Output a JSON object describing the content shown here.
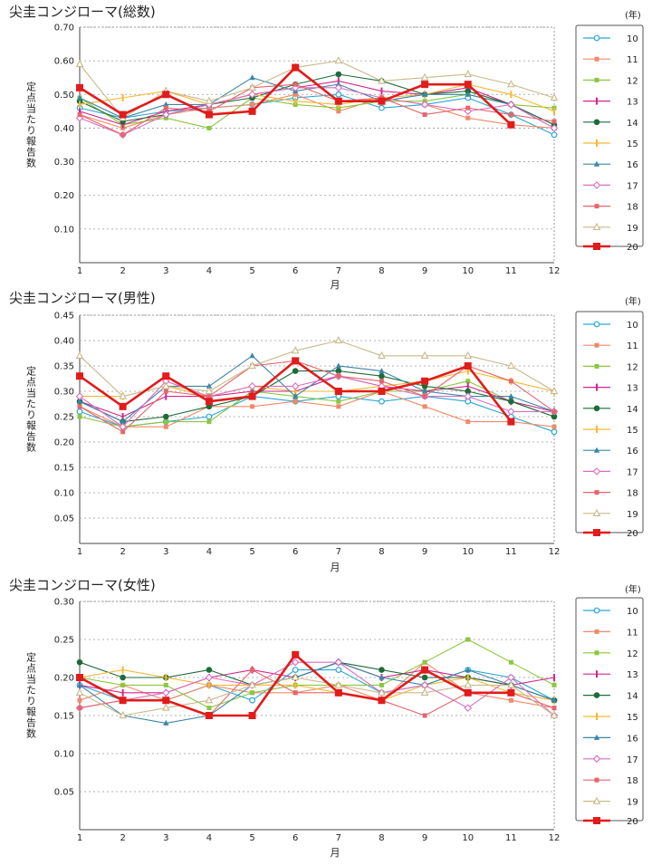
{
  "colors": {
    "10": "#2aa7d6",
    "11": "#f08a6a",
    "12": "#8cc63f",
    "13": "#d1268c",
    "14": "#1e6b3a",
    "15": "#f7b733",
    "16": "#3b86a6",
    "17": "#d86fc1",
    "18": "#e6656b",
    "19": "#c8b98a",
    "20": "#e21b1b",
    "grid": "#9a9a9a",
    "text": "#222222"
  },
  "chart_data": [
    {
      "type": "line",
      "title": "尖圭コンジローマ(総数)",
      "ylabel": "定点当たり報告数",
      "xlabel": "月",
      "year_unit": "(年)",
      "categories": [
        "1",
        "2",
        "3",
        "4",
        "5",
        "6",
        "7",
        "8",
        "9",
        "10",
        "11",
        "12"
      ],
      "ylim": [
        0,
        0.7
      ],
      "yticks": [
        "0.10",
        "0.20",
        "0.30",
        "0.40",
        "0.50",
        "0.60",
        "0.70"
      ],
      "legend_position": "right",
      "series": [
        {
          "name": "10",
          "marker": "circle-open",
          "values": [
            0.46,
            0.43,
            0.45,
            0.46,
            0.47,
            0.49,
            0.5,
            0.46,
            0.47,
            0.49,
            0.44,
            0.38
          ]
        },
        {
          "name": "11",
          "marker": "square-filled",
          "values": [
            0.44,
            0.4,
            0.44,
            0.46,
            0.47,
            0.5,
            0.45,
            0.49,
            0.47,
            0.43,
            0.41,
            0.4
          ]
        },
        {
          "name": "12",
          "marker": "square-filled",
          "values": [
            0.49,
            0.41,
            0.43,
            0.4,
            0.49,
            0.47,
            0.46,
            0.48,
            0.48,
            0.5,
            0.47,
            0.46
          ]
        },
        {
          "name": "13",
          "marker": "bar",
          "values": [
            0.45,
            0.41,
            0.45,
            0.47,
            0.5,
            0.52,
            0.54,
            0.51,
            0.5,
            0.52,
            0.47,
            0.41
          ]
        },
        {
          "name": "14",
          "marker": "circle-filled",
          "values": [
            0.48,
            0.42,
            0.44,
            0.47,
            0.49,
            0.53,
            0.56,
            0.54,
            0.5,
            0.51,
            0.47,
            0.41
          ]
        },
        {
          "name": "15",
          "marker": "bar",
          "values": [
            0.47,
            0.49,
            0.51,
            0.47,
            0.5,
            0.48,
            0.47,
            0.49,
            0.5,
            0.53,
            0.5,
            0.45
          ]
        },
        {
          "name": "16",
          "marker": "triangle-filled",
          "values": [
            0.49,
            0.43,
            0.47,
            0.47,
            0.55,
            0.51,
            0.53,
            0.48,
            0.5,
            0.5,
            0.47,
            0.4
          ]
        },
        {
          "name": "17",
          "marker": "diamond-open",
          "values": [
            0.43,
            0.38,
            0.44,
            0.47,
            0.5,
            0.52,
            0.52,
            0.49,
            0.47,
            0.45,
            0.47,
            0.4
          ]
        },
        {
          "name": "18",
          "marker": "square-filled",
          "values": [
            0.44,
            0.38,
            0.46,
            0.45,
            0.52,
            0.53,
            0.48,
            0.49,
            0.44,
            0.46,
            0.44,
            0.42
          ]
        },
        {
          "name": "19",
          "marker": "triangle-open",
          "values": [
            0.59,
            0.43,
            0.51,
            0.48,
            0.52,
            0.58,
            0.6,
            0.54,
            0.55,
            0.56,
            0.53,
            0.49
          ]
        },
        {
          "name": "20",
          "marker": "square-big",
          "values": [
            0.52,
            0.44,
            0.5,
            0.44,
            0.45,
            0.58,
            0.48,
            0.48,
            0.53,
            0.53,
            0.41,
            null
          ]
        }
      ]
    },
    {
      "type": "line",
      "title": "尖圭コンジローマ(男性)",
      "ylabel": "定点当たり報告数",
      "xlabel": "月",
      "year_unit": "(年)",
      "categories": [
        "1",
        "2",
        "3",
        "4",
        "5",
        "6",
        "7",
        "8",
        "9",
        "10",
        "11",
        "12"
      ],
      "ylim": [
        0,
        0.45
      ],
      "yticks": [
        "0.05",
        "0.10",
        "0.15",
        "0.20",
        "0.25",
        "0.30",
        "0.35",
        "0.40",
        "0.45"
      ],
      "legend_position": "right",
      "series": [
        {
          "name": "10",
          "marker": "circle-open",
          "values": [
            0.26,
            0.23,
            0.24,
            0.25,
            0.29,
            0.28,
            0.29,
            0.28,
            0.29,
            0.28,
            0.25,
            0.22
          ]
        },
        {
          "name": "11",
          "marker": "square-filled",
          "values": [
            0.27,
            0.23,
            0.23,
            0.27,
            0.27,
            0.28,
            0.27,
            0.3,
            0.27,
            0.24,
            0.24,
            0.23
          ]
        },
        {
          "name": "12",
          "marker": "square-filled",
          "values": [
            0.25,
            0.23,
            0.24,
            0.24,
            0.3,
            0.29,
            0.28,
            0.3,
            0.3,
            0.32,
            0.28,
            0.25
          ]
        },
        {
          "name": "13",
          "marker": "bar",
          "values": [
            0.28,
            0.25,
            0.29,
            0.29,
            0.3,
            0.3,
            0.33,
            0.31,
            0.3,
            0.31,
            0.28,
            0.26
          ]
        },
        {
          "name": "14",
          "marker": "circle-filled",
          "values": [
            0.28,
            0.24,
            0.25,
            0.27,
            0.29,
            0.34,
            0.34,
            0.33,
            0.31,
            0.3,
            0.28,
            0.25
          ]
        },
        {
          "name": "15",
          "marker": "bar",
          "values": [
            0.29,
            0.29,
            0.31,
            0.29,
            0.31,
            0.3,
            0.3,
            0.31,
            0.32,
            0.34,
            0.32,
            0.3
          ]
        },
        {
          "name": "16",
          "marker": "triangle-filled",
          "values": [
            0.28,
            0.24,
            0.31,
            0.31,
            0.37,
            0.29,
            0.35,
            0.34,
            0.3,
            0.29,
            0.29,
            0.26
          ]
        },
        {
          "name": "17",
          "marker": "diamond-open",
          "values": [
            0.29,
            0.23,
            0.32,
            0.29,
            0.31,
            0.31,
            0.33,
            0.31,
            0.29,
            0.29,
            0.26,
            0.26
          ]
        },
        {
          "name": "18",
          "marker": "square-filled",
          "values": [
            0.27,
            0.22,
            0.3,
            0.29,
            0.35,
            0.36,
            0.33,
            0.32,
            0.29,
            0.35,
            0.32,
            0.26
          ]
        },
        {
          "name": "19",
          "marker": "triangle-open",
          "values": [
            0.37,
            0.29,
            0.31,
            0.3,
            0.35,
            0.38,
            0.4,
            0.37,
            0.37,
            0.37,
            0.35,
            0.3
          ]
        },
        {
          "name": "20",
          "marker": "square-big",
          "values": [
            0.33,
            0.27,
            0.33,
            0.28,
            0.29,
            0.36,
            0.3,
            0.3,
            0.32,
            0.35,
            0.24,
            null
          ]
        }
      ]
    },
    {
      "type": "line",
      "title": "尖圭コンジローマ(女性)",
      "ylabel": "定点当たり報告数",
      "xlabel": "月",
      "year_unit": "(年)",
      "categories": [
        "1",
        "2",
        "3",
        "4",
        "5",
        "6",
        "7",
        "8",
        "9",
        "10",
        "11",
        "12"
      ],
      "ylim": [
        0,
        0.3
      ],
      "yticks": [
        "0.05",
        "0.10",
        "0.15",
        "0.20",
        "0.25",
        "0.30"
      ],
      "legend_position": "right",
      "series": [
        {
          "name": "10",
          "marker": "circle-open",
          "values": [
            0.19,
            0.17,
            0.17,
            0.19,
            0.17,
            0.21,
            0.21,
            0.18,
            0.19,
            0.21,
            0.2,
            0.17
          ]
        },
        {
          "name": "11",
          "marker": "square-filled",
          "values": [
            0.17,
            0.19,
            0.17,
            0.19,
            0.18,
            0.18,
            0.19,
            0.17,
            0.22,
            0.18,
            0.17,
            0.16
          ]
        },
        {
          "name": "12",
          "marker": "square-filled",
          "values": [
            0.2,
            0.19,
            0.19,
            0.16,
            0.18,
            0.19,
            0.19,
            0.19,
            0.22,
            0.25,
            0.22,
            0.19
          ]
        },
        {
          "name": "13",
          "marker": "bar",
          "values": [
            0.19,
            0.18,
            0.18,
            0.2,
            0.21,
            0.2,
            0.22,
            0.2,
            0.21,
            0.2,
            0.19,
            0.2
          ]
        },
        {
          "name": "14",
          "marker": "circle-filled",
          "values": [
            0.22,
            0.2,
            0.2,
            0.21,
            0.19,
            0.2,
            0.22,
            0.21,
            0.2,
            0.2,
            0.19,
            0.17
          ]
        },
        {
          "name": "15",
          "marker": "bar",
          "values": [
            0.2,
            0.21,
            0.2,
            0.19,
            0.19,
            0.19,
            0.18,
            0.17,
            0.19,
            0.2,
            0.18,
            0.17
          ]
        },
        {
          "name": "16",
          "marker": "triangle-filled",
          "values": [
            0.19,
            0.15,
            0.14,
            0.15,
            0.19,
            0.2,
            0.22,
            0.2,
            0.19,
            0.21,
            0.19,
            0.17
          ]
        },
        {
          "name": "17",
          "marker": "diamond-open",
          "values": [
            0.16,
            0.17,
            0.18,
            0.2,
            0.19,
            0.22,
            0.22,
            0.18,
            0.19,
            0.16,
            0.2,
            0.15
          ]
        },
        {
          "name": "18",
          "marker": "square-filled",
          "values": [
            0.16,
            0.17,
            0.17,
            0.15,
            0.21,
            0.18,
            0.18,
            0.17,
            0.15,
            0.18,
            0.18,
            0.16
          ]
        },
        {
          "name": "19",
          "marker": "triangle-open",
          "values": [
            0.18,
            0.15,
            0.16,
            0.17,
            0.19,
            0.2,
            0.19,
            0.18,
            0.18,
            0.19,
            0.19,
            0.15
          ]
        },
        {
          "name": "20",
          "marker": "square-big",
          "values": [
            0.2,
            0.17,
            0.17,
            0.15,
            0.15,
            0.23,
            0.18,
            0.17,
            0.21,
            0.18,
            0.18,
            null
          ]
        }
      ]
    }
  ]
}
